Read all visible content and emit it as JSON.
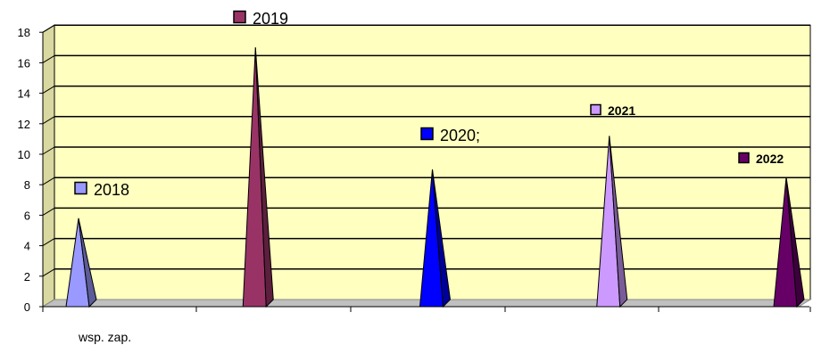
{
  "chart_data": {
    "type": "bar",
    "style": "3d-cone",
    "categories": [
      "wsp. zap."
    ],
    "x_category_label": "wsp. zap.",
    "ylim": [
      0,
      18
    ],
    "y_ticks": [
      0,
      2,
      4,
      6,
      8,
      10,
      12,
      14,
      16,
      18
    ],
    "grid": true,
    "plot_background": "#ffffc0",
    "floor_color": "#c0c0c0",
    "series": [
      {
        "name": "2018",
        "value": 5.8,
        "color": "#9999ff",
        "legend_bold": false
      },
      {
        "name": "2019",
        "value": 17.0,
        "color": "#993366",
        "legend_bold": false
      },
      {
        "name": "2020;",
        "value": 9.0,
        "color": "#0000ff",
        "legend_bold": false
      },
      {
        "name": "2021",
        "value": 11.2,
        "color": "#cc99ff",
        "legend_bold": true
      },
      {
        "name": "2022",
        "value": 8.5,
        "color": "#660066",
        "legend_bold": true
      }
    ]
  }
}
